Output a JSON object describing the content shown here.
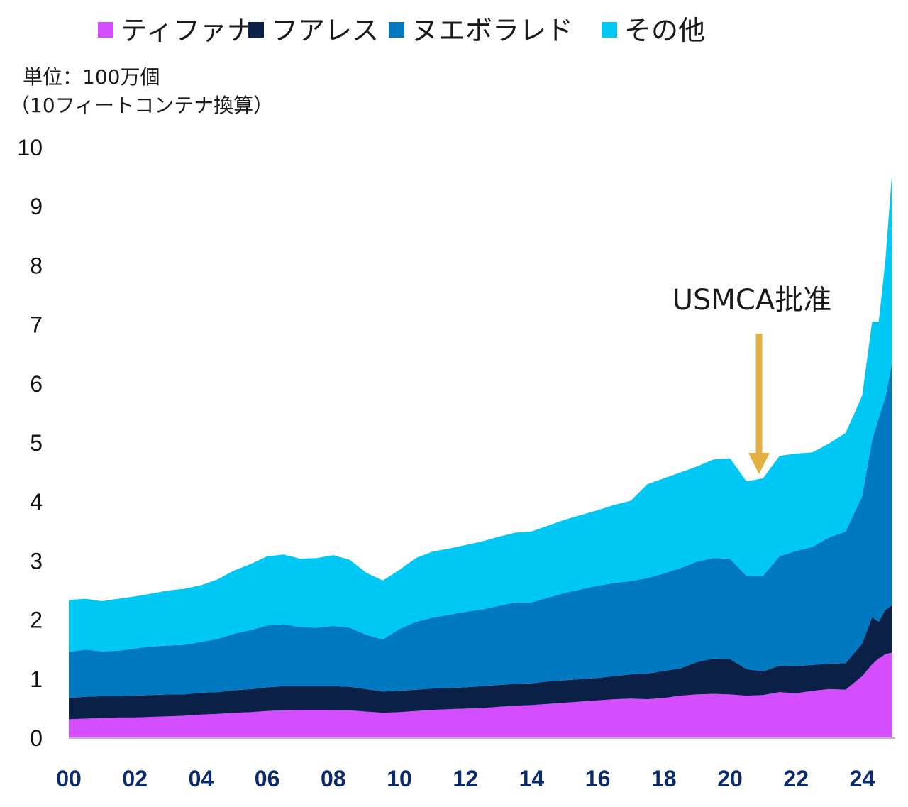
{
  "chart_data": {
    "type": "area",
    "stacked": true,
    "unit_line1": "単位：100万個",
    "unit_line2": "（10フィートコンテナ換算）",
    "legend_position": "top",
    "ylim": [
      0,
      10
    ],
    "y_ticks": [
      "0",
      "1",
      "2",
      "3",
      "4",
      "5",
      "6",
      "7",
      "8",
      "9",
      "10"
    ],
    "x_ticks": [
      "00",
      "02",
      "04",
      "06",
      "08",
      "10",
      "12",
      "14",
      "16",
      "18",
      "20",
      "22",
      "24"
    ],
    "x_tick_color": "#0a2a6b",
    "grid": false,
    "annotation": {
      "text": "USMCA批准",
      "x": 2020.8,
      "y": 4.45,
      "arrow_color": "#e2b043"
    },
    "x": [
      2000.0,
      2000.5,
      2001.0,
      2001.5,
      2002.0,
      2002.5,
      2003.0,
      2003.5,
      2004.0,
      2004.5,
      2005.0,
      2005.5,
      2006.0,
      2006.5,
      2007.0,
      2007.5,
      2008.0,
      2008.5,
      2009.0,
      2009.5,
      2010.0,
      2010.5,
      2011.0,
      2011.5,
      2012.0,
      2012.5,
      2013.0,
      2013.5,
      2014.0,
      2014.5,
      2015.0,
      2015.5,
      2016.0,
      2016.5,
      2017.0,
      2017.5,
      2018.0,
      2018.5,
      2019.0,
      2019.5,
      2020.0,
      2020.5,
      2021.0,
      2021.5,
      2022.0,
      2022.5,
      2023.0,
      2023.5,
      2024.0,
      2024.3,
      2024.5,
      2024.7,
      2024.9
    ],
    "series": [
      {
        "name": "ティファナ",
        "color": "#d44dff",
        "values": [
          0.32,
          0.33,
          0.34,
          0.35,
          0.35,
          0.36,
          0.37,
          0.38,
          0.4,
          0.41,
          0.43,
          0.44,
          0.46,
          0.47,
          0.48,
          0.48,
          0.48,
          0.47,
          0.45,
          0.43,
          0.44,
          0.46,
          0.48,
          0.49,
          0.5,
          0.51,
          0.53,
          0.55,
          0.56,
          0.58,
          0.6,
          0.62,
          0.64,
          0.66,
          0.67,
          0.66,
          0.68,
          0.72,
          0.74,
          0.75,
          0.74,
          0.72,
          0.73,
          0.78,
          0.76,
          0.8,
          0.83,
          0.82,
          1.05,
          1.25,
          1.35,
          1.42,
          1.45
        ]
      },
      {
        "name": "フアレス",
        "color": "#0a2046",
        "values": [
          0.36,
          0.37,
          0.37,
          0.36,
          0.37,
          0.37,
          0.37,
          0.36,
          0.37,
          0.37,
          0.38,
          0.39,
          0.4,
          0.41,
          0.4,
          0.4,
          0.4,
          0.4,
          0.38,
          0.36,
          0.36,
          0.36,
          0.36,
          0.36,
          0.36,
          0.37,
          0.37,
          0.37,
          0.37,
          0.38,
          0.38,
          0.38,
          0.38,
          0.39,
          0.41,
          0.43,
          0.46,
          0.46,
          0.55,
          0.6,
          0.6,
          0.45,
          0.4,
          0.45,
          0.46,
          0.44,
          0.43,
          0.45,
          0.55,
          0.8,
          0.62,
          0.75,
          0.8
        ]
      },
      {
        "name": "ヌエボラレド",
        "color": "#0079c1",
        "values": [
          0.78,
          0.8,
          0.76,
          0.77,
          0.8,
          0.82,
          0.83,
          0.84,
          0.86,
          0.9,
          0.96,
          1.0,
          1.05,
          1.05,
          1.0,
          0.99,
          1.02,
          1.0,
          0.92,
          0.88,
          1.05,
          1.15,
          1.2,
          1.24,
          1.28,
          1.3,
          1.34,
          1.38,
          1.37,
          1.42,
          1.48,
          1.52,
          1.56,
          1.58,
          1.58,
          1.62,
          1.65,
          1.7,
          1.7,
          1.7,
          1.7,
          1.58,
          1.62,
          1.85,
          1.95,
          2.0,
          2.14,
          2.23,
          2.5,
          3.0,
          3.45,
          3.6,
          4.1
        ]
      },
      {
        "name": "その他",
        "color": "#00c8f5",
        "values": [
          0.88,
          0.86,
          0.85,
          0.88,
          0.88,
          0.9,
          0.93,
          0.95,
          0.96,
          1.01,
          1.07,
          1.12,
          1.17,
          1.18,
          1.16,
          1.18,
          1.2,
          1.15,
          1.05,
          1.0,
          1.0,
          1.08,
          1.12,
          1.12,
          1.13,
          1.15,
          1.17,
          1.18,
          1.2,
          1.22,
          1.24,
          1.26,
          1.28,
          1.32,
          1.36,
          1.59,
          1.61,
          1.62,
          1.61,
          1.67,
          1.7,
          1.6,
          1.65,
          1.7,
          1.65,
          1.6,
          1.59,
          1.67,
          1.7,
          2.0,
          1.63,
          2.3,
          3.2
        ]
      }
    ]
  }
}
